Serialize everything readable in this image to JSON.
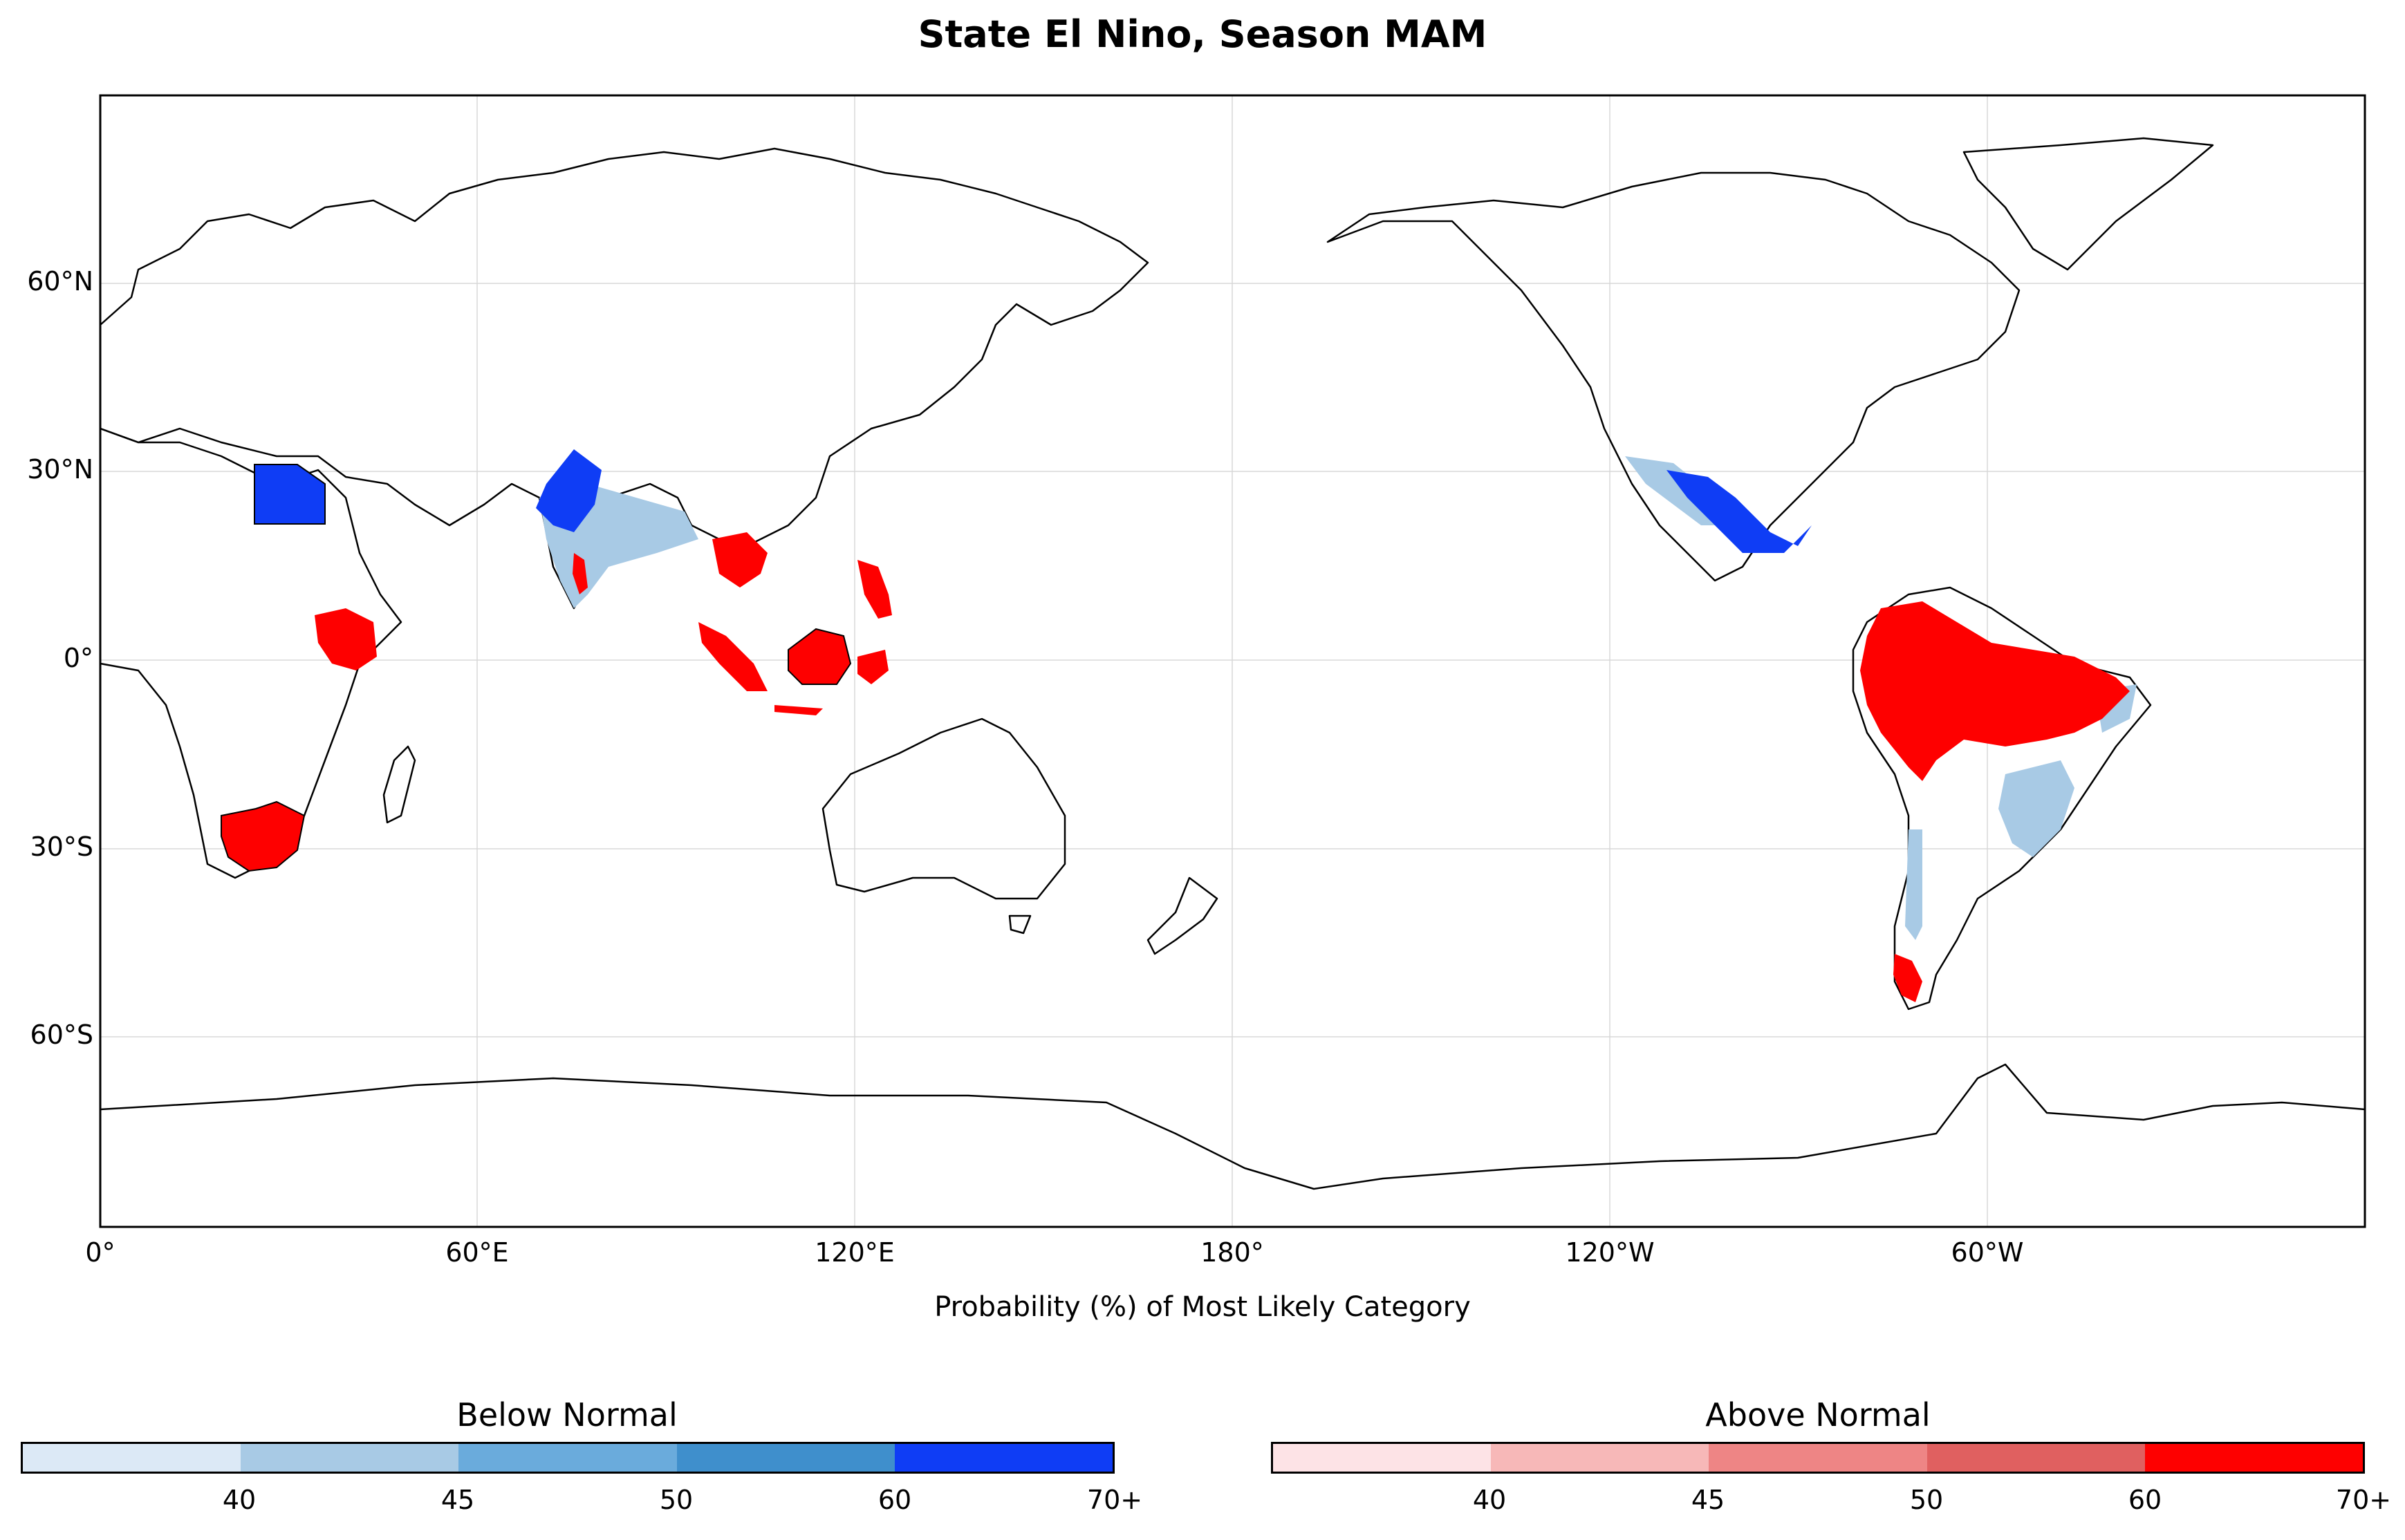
{
  "title": "State El Nino, Season MAM",
  "lat_labels": [
    "60°N",
    "30°N",
    "0°",
    "30°S",
    "60°S"
  ],
  "lon_labels": [
    "0°",
    "60°E",
    "120°E",
    "180°",
    "120°W",
    "60°W"
  ],
  "xlabel": "Probability (%) of Most Likely Category",
  "colorbars": [
    {
      "title": "Below Normal",
      "colors": [
        "#dce9f6",
        "#a8cae5",
        "#6aabdc",
        "#3f8fcc",
        "#0f3df5"
      ],
      "ticks": [
        "40",
        "45",
        "50",
        "60",
        "70+"
      ]
    },
    {
      "title": "Above Normal",
      "colors": [
        "#fde3e6",
        "#f7b8b8",
        "#ee8585",
        "#e06060",
        "#fe0000"
      ],
      "ticks": [
        "40",
        "45",
        "50",
        "60",
        "70+"
      ]
    }
  ],
  "colors": {
    "land_outline": "#000000",
    "grid": "#d8d8d8"
  }
}
